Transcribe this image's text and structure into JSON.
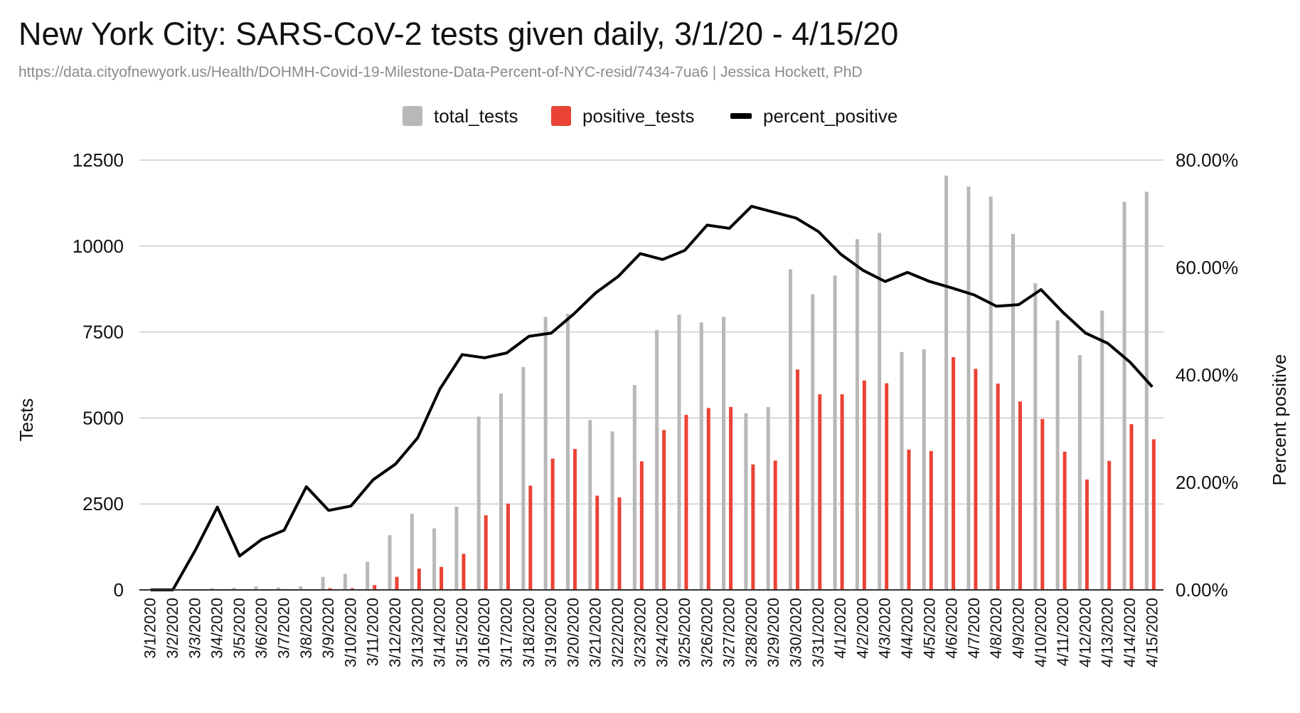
{
  "chart_data": {
    "type": "bar",
    "title": "New York City: SARS-CoV-2 tests given daily, 3/1/20 - 4/15/20",
    "subtitle": "https://data.cityofnewyork.us/Health/DOHMH-Covid-19-Milestone-Data-Percent-of-NYC-resid/7434-7ua6 | Jessica Hockett, PhD",
    "ylabel": "Tests",
    "y2label": "Percent positive",
    "ylim": [
      0,
      12500
    ],
    "y2lim": [
      0,
      80
    ],
    "yticks": [
      0,
      2500,
      5000,
      7500,
      10000,
      12500
    ],
    "y2ticks": [
      "0.00%",
      "20.00%",
      "40.00%",
      "60.00%",
      "80.00%"
    ],
    "grid": true,
    "legend_position": "top",
    "categories": [
      "3/1/2020",
      "3/2/2020",
      "3/3/2020",
      "3/4/2020",
      "3/5/2020",
      "3/6/2020",
      "3/7/2020",
      "3/8/2020",
      "3/9/2020",
      "3/10/2020",
      "3/11/2020",
      "3/12/2020",
      "3/13/2020",
      "3/14/2020",
      "3/15/2020",
      "3/16/2020",
      "3/17/2020",
      "3/18/2020",
      "3/19/2020",
      "3/20/2020",
      "3/21/2020",
      "3/22/2020",
      "3/23/2020",
      "3/24/2020",
      "3/25/2020",
      "3/26/2020",
      "3/27/2020",
      "3/28/2020",
      "3/29/2020",
      "3/30/2020",
      "3/31/2020",
      "4/1/2020",
      "4/2/2020",
      "4/3/2020",
      "4/4/2020",
      "4/5/2020",
      "4/6/2020",
      "4/7/2020",
      "4/8/2020",
      "4/9/2020",
      "4/10/2020",
      "4/11/2020",
      "4/12/2020",
      "4/13/2020",
      "4/14/2020",
      "4/15/2020"
    ],
    "series": [
      {
        "name": "total_tests",
        "type": "bar",
        "axis": "left",
        "color": "#b8b8b8",
        "values": [
          5,
          5,
          20,
          50,
          60,
          100,
          70,
          100,
          380,
          470,
          820,
          1590,
          2210,
          1790,
          2420,
          5040,
          5710,
          6480,
          7940,
          8030,
          4940,
          4610,
          5960,
          7560,
          8010,
          7780,
          7940,
          5140,
          5320,
          9320,
          8600,
          9140,
          10200,
          10380,
          6920,
          7000,
          12050,
          11730,
          11440,
          10350,
          8920,
          7840,
          6830,
          8120,
          11290,
          11580
        ]
      },
      {
        "name": "positive_tests",
        "type": "bar",
        "axis": "left",
        "color": "#ea4335",
        "values": [
          0,
          0,
          1,
          8,
          5,
          8,
          6,
          20,
          50,
          50,
          140,
          380,
          620,
          670,
          1050,
          2170,
          2510,
          3030,
          3820,
          4100,
          2740,
          2690,
          3740,
          4650,
          5090,
          5290,
          5320,
          3650,
          3760,
          6410,
          5690,
          5690,
          6090,
          6010,
          4080,
          4040,
          6770,
          6430,
          6000,
          5480,
          4970,
          4020,
          3210,
          3750,
          4820,
          4380
        ]
      },
      {
        "name": "percent_positive",
        "type": "line",
        "axis": "right",
        "color": "#000000",
        "values": [
          0,
          0,
          7.3,
          15.4,
          6.3,
          9.4,
          11.1,
          19.2,
          14.8,
          15.6,
          20.5,
          23.4,
          28.3,
          37.4,
          43.8,
          43.2,
          44.1,
          47.2,
          47.8,
          51.3,
          55.3,
          58.3,
          62.6,
          61.5,
          63.2,
          67.9,
          67.3,
          71.4,
          70.3,
          69.2,
          66.7,
          62.5,
          59.5,
          57.4,
          59.1,
          57.4,
          56.2,
          54.9,
          52.8,
          53.1,
          55.9,
          51.6,
          47.8,
          45.9,
          42.4,
          37.8
        ]
      }
    ]
  }
}
